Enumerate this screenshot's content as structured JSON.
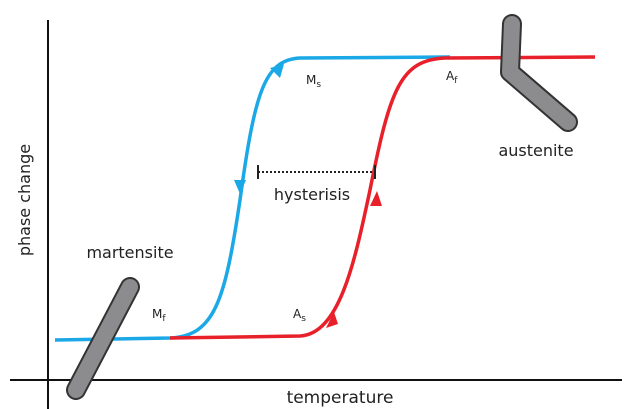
{
  "axes": {
    "y_label": "phase change",
    "x_label": "temperature"
  },
  "phases": {
    "martensite": "martensite",
    "austenite": "austenite"
  },
  "hysteresis": "hysterisis",
  "points": [
    {
      "main": "M",
      "sub": "s"
    },
    {
      "main": "A",
      "sub": "f"
    },
    {
      "main": "M",
      "sub": "f"
    },
    {
      "main": "A",
      "sub": "s"
    }
  ]
}
